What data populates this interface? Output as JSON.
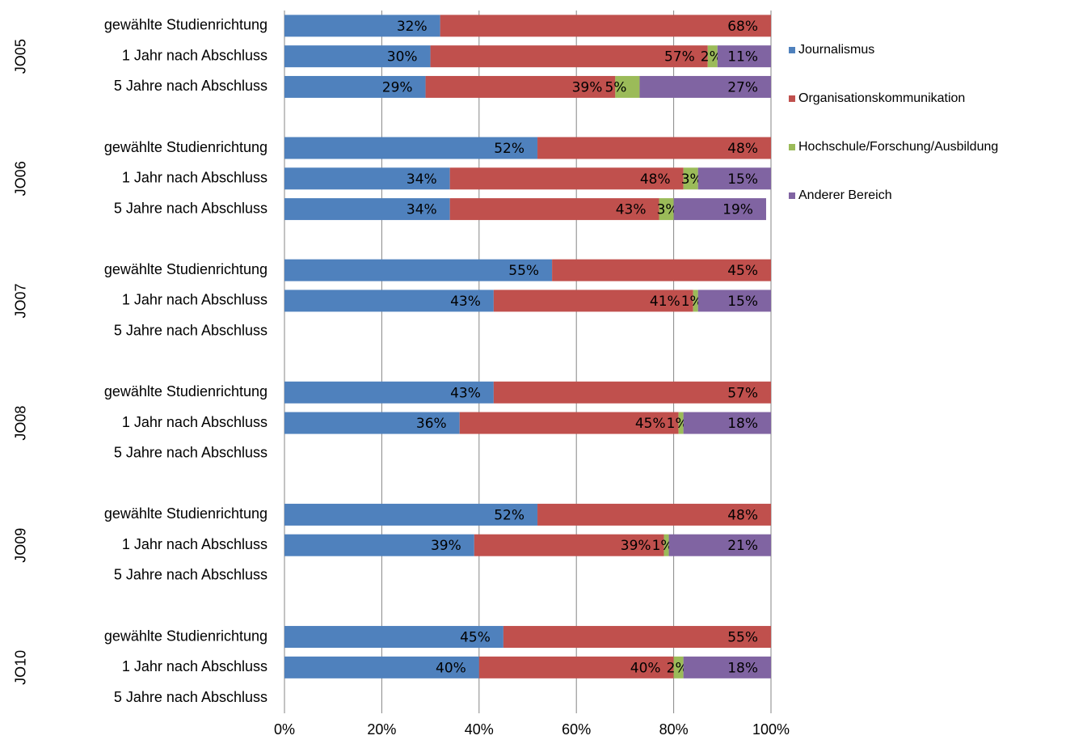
{
  "chart_data": {
    "type": "stacked-bar-horizontal",
    "groups": [
      "JO05",
      "JO06",
      "JO07",
      "JO08",
      "JO09",
      "JO10"
    ],
    "categories": [
      "gewählte Studienrichtung",
      "1 Jahr nach Abschluss",
      "5 Jahre nach Abschluss",
      "gewählte Studienrichtung",
      "1 Jahr nach Abschluss",
      "5 Jahre nach Abschluss",
      "gewählte Studienrichtung",
      "1 Jahr nach Abschluss",
      "5 Jahre nach Abschluss",
      "gewählte Studienrichtung",
      "1 Jahr nach Abschluss",
      "5 Jahre nach Abschluss",
      "gewählte Studienrichtung",
      "1 Jahr nach Abschluss",
      "5 Jahre nach Abschluss",
      "gewählte Studienrichtung",
      "1 Jahr nach Abschluss",
      "5 Jahre nach Abschluss"
    ],
    "series": [
      {
        "name": "Journalismus",
        "color": "#4f81bd",
        "values": [
          32,
          30,
          29,
          52,
          34,
          34,
          55,
          43,
          null,
          43,
          36,
          null,
          52,
          39,
          null,
          45,
          40,
          null
        ],
        "value_labels": [
          "32%",
          "30%",
          "29%",
          "52%",
          "34%",
          "34%",
          "55%",
          "43%",
          null,
          "43%",
          "36%",
          null,
          "52%",
          "39%",
          null,
          "45%",
          "40%",
          null
        ]
      },
      {
        "name": "Organisationskommunikation",
        "color": "#c0504d",
        "values": [
          68,
          57,
          39,
          48,
          48,
          43,
          45,
          41,
          null,
          57,
          45,
          null,
          48,
          39,
          null,
          55,
          40,
          null
        ],
        "value_labels": [
          "68%",
          "57%",
          "39%",
          "48%",
          "48%",
          "43%",
          "45%",
          "41%",
          null,
          "57%",
          "45%",
          null,
          "48%",
          "39%",
          null,
          "55%",
          "40%",
          null
        ]
      },
      {
        "name": "Hochschule/Forschung/Ausbildung",
        "color": "#9bbb59",
        "values": [
          null,
          2,
          5,
          null,
          3,
          3,
          null,
          1,
          null,
          null,
          1,
          null,
          null,
          1,
          null,
          null,
          2,
          null
        ],
        "value_labels": [
          null,
          "2%",
          "5%",
          null,
          "3%",
          "3%",
          null,
          "1%",
          null,
          null,
          "1%",
          null,
          null,
          "1%",
          null,
          null,
          "2%",
          null
        ]
      },
      {
        "name": "Anderer Bereich",
        "color": "#8064a2",
        "values": [
          null,
          11,
          27,
          null,
          15,
          19,
          null,
          15,
          null,
          null,
          18,
          null,
          null,
          21,
          null,
          null,
          18,
          null
        ],
        "value_labels": [
          null,
          "11%",
          "27%",
          null,
          "15%",
          "19%",
          null,
          "15%",
          null,
          null,
          "18%",
          null,
          null,
          "21%",
          null,
          null,
          "18%",
          null
        ]
      }
    ],
    "xlim": [
      0,
      100
    ],
    "xticks": [
      {
        "value": 0,
        "label": "0%"
      },
      {
        "value": 20,
        "label": "20%"
      },
      {
        "value": 40,
        "label": "40%"
      },
      {
        "value": 60,
        "label": "60%"
      },
      {
        "value": 80,
        "label": "80%"
      },
      {
        "value": 100,
        "label": "100%"
      }
    ],
    "grid": true,
    "legend": "right"
  }
}
